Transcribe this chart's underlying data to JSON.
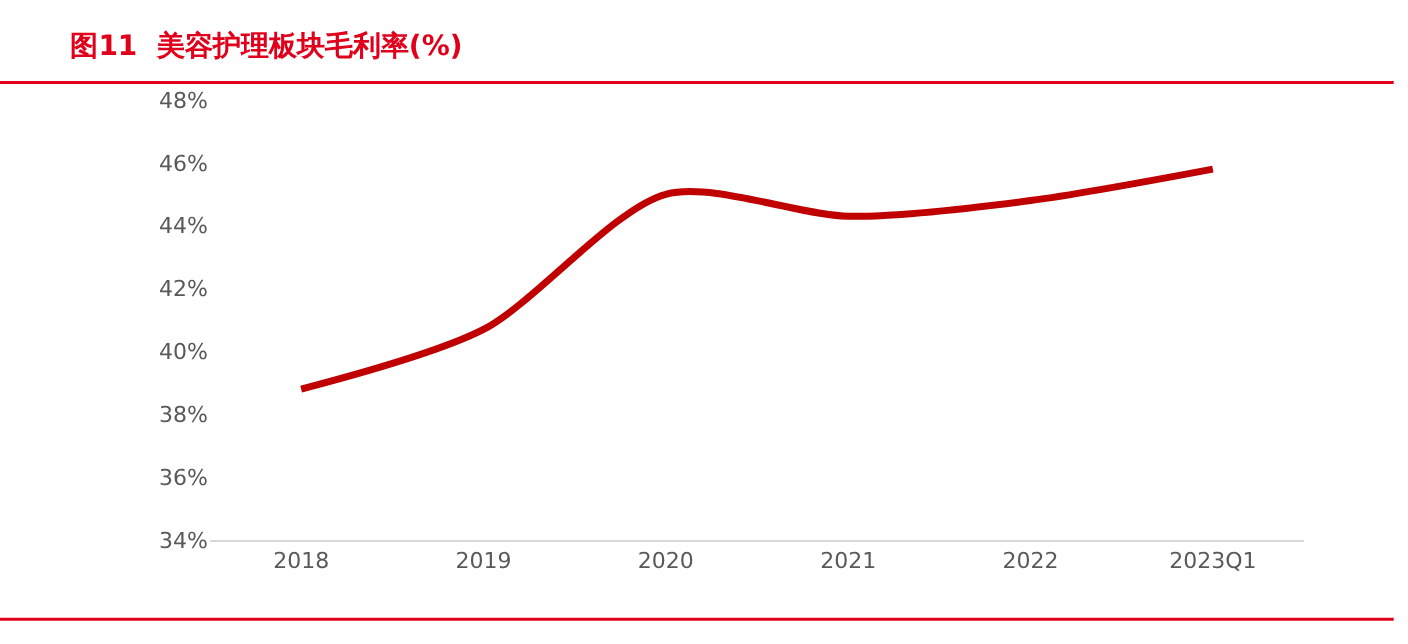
{
  "chart_data": {
    "type": "line",
    "title": "图11  美容护理板块毛利率(%)",
    "categories": [
      "2018",
      "2019",
      "2020",
      "2021",
      "2022",
      "2023Q1"
    ],
    "series": [
      {
        "color": "#c00000",
        "values": [
          38.8,
          40.7,
          45.0,
          44.3,
          44.8,
          45.8
        ]
      }
    ],
    "ylim": [
      34,
      48
    ],
    "yticks": [
      {
        "value": 34,
        "label": "34%"
      },
      {
        "value": 36,
        "label": "36%"
      },
      {
        "value": 38,
        "label": "38%"
      },
      {
        "value": 40,
        "label": "40%"
      },
      {
        "value": 42,
        "label": "42%"
      },
      {
        "value": 44,
        "label": "44%"
      },
      {
        "value": 46,
        "label": "46%"
      },
      {
        "value": 48,
        "label": "48%"
      }
    ],
    "grid": false,
    "marker": "none",
    "line_style": "solid"
  }
}
